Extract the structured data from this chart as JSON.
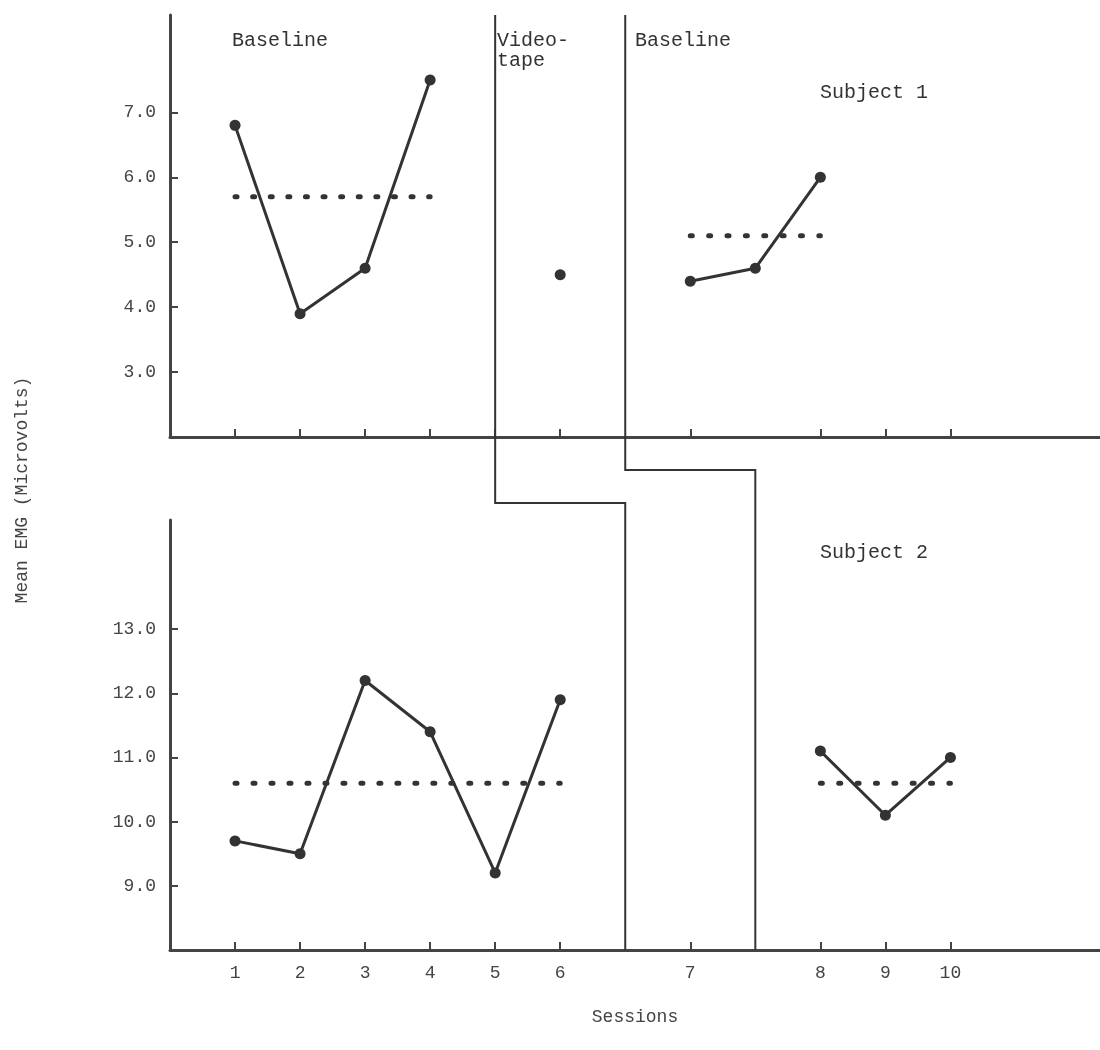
{
  "chart_data": [
    {
      "type": "line",
      "ylabel": "Mean EMG (Microvolts)",
      "annotations": [
        "Baseline",
        "Video-tape",
        "Baseline",
        "Subject 1"
      ],
      "categories": [
        "1",
        "2",
        "3",
        "4",
        "5",
        "6",
        null,
        "7",
        null,
        "8",
        "9",
        "10"
      ],
      "ylim": [
        2,
        8.5
      ],
      "yticks": [
        {
          "value": 3,
          "label": "3.0"
        },
        {
          "value": 4,
          "label": "4.0"
        },
        {
          "value": 5,
          "label": "5.0"
        },
        {
          "value": 6,
          "label": "6.0"
        },
        {
          "value": 7,
          "label": "7.0"
        }
      ],
      "tick_labels": "y",
      "grid": false,
      "marker": "circle",
      "series": [
        {
          "color": "#333333",
          "values": [
            6.8,
            3.9,
            4.6,
            7.5,
            null,
            null,
            null,
            null,
            null,
            null,
            null,
            null
          ]
        },
        {
          "color": "#333333",
          "values": [
            null,
            null,
            null,
            null,
            null,
            4.5,
            null,
            null,
            null,
            null,
            null,
            null
          ]
        },
        {
          "color": "#333333",
          "values": [
            null,
            null,
            null,
            null,
            null,
            null,
            null,
            4.4,
            4.6,
            6.0,
            null,
            null
          ]
        },
        {
          "color": "#333333",
          "values": [
            5.7,
            5.7,
            5.7,
            5.7,
            null,
            null,
            null,
            null,
            null,
            null,
            null,
            null
          ],
          "line_style": "dotted",
          "marker": "none"
        },
        {
          "color": "#333333",
          "values": [
            null,
            null,
            null,
            null,
            null,
            null,
            null,
            5.1,
            5.1,
            5.1,
            null,
            null
          ],
          "line_style": "dotted",
          "marker": "none"
        }
      ]
    },
    {
      "type": "line",
      "xlabel": "Sessions",
      "annotations": [
        "Subject 2"
      ],
      "categories": [
        "1",
        "2",
        "3",
        "4",
        "5",
        "6",
        null,
        "7",
        null,
        "8",
        "9",
        "10"
      ],
      "ylim": [
        8,
        14.7
      ],
      "yticks": [
        {
          "value": 9,
          "label": "9.0"
        },
        {
          "value": 10,
          "label": "10.0"
        },
        {
          "value": 11,
          "label": "11.0"
        },
        {
          "value": 12,
          "label": "12.0"
        },
        {
          "value": 13,
          "label": "13.0"
        }
      ],
      "grid": false,
      "marker": "circle",
      "series": [
        {
          "color": "#333333",
          "values": [
            9.7,
            9.5,
            12.2,
            11.4,
            9.2,
            11.9,
            null,
            null,
            null,
            null,
            null,
            null
          ]
        },
        {
          "color": "#333333",
          "values": [
            null,
            null,
            null,
            null,
            null,
            null,
            null,
            null,
            null,
            11.1,
            10.1,
            11.0
          ]
        },
        {
          "color": "#333333",
          "values": [
            10.6,
            10.6,
            10.6,
            10.6,
            10.6,
            10.6,
            null,
            null,
            null,
            null,
            null,
            null
          ],
          "line_style": "dotted",
          "marker": "none"
        },
        {
          "color": "#333333",
          "values": [
            null,
            null,
            null,
            null,
            null,
            null,
            null,
            null,
            null,
            10.6,
            10.6,
            10.6
          ],
          "line_style": "dotted",
          "marker": "none"
        }
      ]
    }
  ]
}
